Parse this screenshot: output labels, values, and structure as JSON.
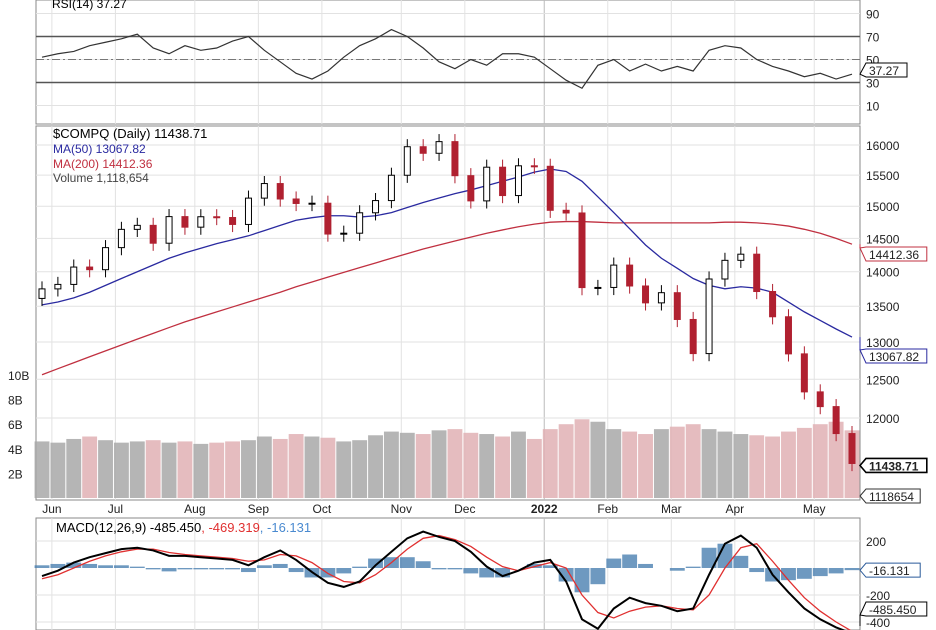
{
  "chart_data": {
    "type": "candlestick",
    "title": "$COMPQ (Daily) 11438.71",
    "symbol": "$COMPQ",
    "period": "Daily",
    "last_close": "11438.71",
    "price_scale": "log",
    "grid": true,
    "legend_placement": "top-left",
    "dates": [
      "2021-05-28",
      "2021-06-04",
      "2021-06-11",
      "2021-06-18",
      "2021-06-25",
      "2021-07-02",
      "2021-07-09",
      "2021-07-16",
      "2021-07-23",
      "2021-07-30",
      "2021-08-06",
      "2021-08-13",
      "2021-08-20",
      "2021-08-27",
      "2021-09-03",
      "2021-09-10",
      "2021-09-17",
      "2021-09-24",
      "2021-10-01",
      "2021-10-08",
      "2021-10-15",
      "2021-10-22",
      "2021-10-29",
      "2021-11-05",
      "2021-11-12",
      "2021-11-19",
      "2021-11-26",
      "2021-12-03",
      "2021-12-10",
      "2021-12-17",
      "2021-12-23",
      "2021-12-31",
      "2022-01-07",
      "2022-01-14",
      "2022-01-21",
      "2022-01-28",
      "2022-02-04",
      "2022-02-11",
      "2022-02-18",
      "2022-02-25",
      "2022-03-04",
      "2022-03-11",
      "2022-03-18",
      "2022-03-25",
      "2022-04-01",
      "2022-04-08",
      "2022-04-14",
      "2022-04-22",
      "2022-04-29",
      "2022-05-06",
      "2022-05-13",
      "2022-05-20"
    ],
    "close": [
      13749,
      13814,
      14069,
      14030,
      14360,
      14639,
      14701,
      14427,
      14837,
      14673,
      14835,
      14823,
      14715,
      15129,
      15363,
      15115,
      15044,
      15048,
      14567,
      14580,
      14897,
      15090,
      15498,
      15971,
      15861,
      16057,
      15491,
      15085,
      15630,
      15170,
      15653,
      15645,
      14936,
      14894,
      13768,
      13770,
      14098,
      13791,
      13548,
      13694,
      13313,
      12843,
      13893,
      14169,
      14261,
      13711,
      13351,
      12839,
      12335,
      12145,
      11805,
      11438.71
    ],
    "ma50": {
      "label": "MA(50)",
      "value": "13067.82",
      "color": "#2a2aa0",
      "values": [
        13520,
        13560,
        13620,
        13700,
        13800,
        13900,
        14000,
        14100,
        14200,
        14280,
        14350,
        14420,
        14480,
        14540,
        14620,
        14700,
        14780,
        14820,
        14850,
        14850,
        14830,
        14850,
        14900,
        14980,
        15060,
        15130,
        15200,
        15260,
        15330,
        15400,
        15470,
        15550,
        15600,
        15560,
        15400,
        15150,
        14900,
        14650,
        14400,
        14200,
        14050,
        13900,
        13800,
        13750,
        13780,
        13760,
        13700,
        13560,
        13420,
        13300,
        13180,
        13068
      ]
    },
    "ma200": {
      "label": "MA(200)",
      "value": "14412.36",
      "color": "#c03040",
      "values": [
        12560,
        12640,
        12720,
        12800,
        12880,
        12960,
        13040,
        13120,
        13200,
        13280,
        13350,
        13420,
        13490,
        13560,
        13630,
        13700,
        13780,
        13850,
        13920,
        13990,
        14060,
        14130,
        14200,
        14270,
        14340,
        14400,
        14460,
        14520,
        14580,
        14630,
        14680,
        14720,
        14750,
        14760,
        14760,
        14750,
        14740,
        14740,
        14740,
        14740,
        14740,
        14740,
        14740,
        14750,
        14750,
        14740,
        14720,
        14690,
        14640,
        14580,
        14500,
        14412
      ]
    },
    "volume": {
      "label": "Volume",
      "value": "1,118,654",
      "last_label": "1118654",
      "unit": "B",
      "values": [
        4.6,
        4.5,
        4.8,
        5.0,
        4.7,
        4.5,
        4.6,
        4.7,
        4.5,
        4.6,
        4.4,
        4.5,
        4.6,
        4.7,
        5.0,
        4.8,
        5.2,
        5.0,
        4.9,
        4.6,
        4.7,
        5.1,
        5.4,
        5.3,
        5.2,
        5.5,
        5.6,
        5.3,
        5.2,
        5.0,
        5.4,
        4.8,
        5.6,
        6.0,
        6.4,
        6.2,
        5.6,
        5.4,
        5.2,
        5.6,
        5.8,
        6.0,
        5.6,
        5.4,
        5.2,
        5.1,
        5.0,
        5.4,
        5.7,
        6.0,
        6.2,
        5.5
      ],
      "ticks": [
        "2B",
        "4B",
        "6B",
        "8B",
        "10B"
      ]
    },
    "price_ticks": [
      12000,
      12500,
      13000,
      13500,
      14000,
      14500,
      15000,
      15500,
      16000
    ],
    "rsi": {
      "label": "RSI(14)",
      "value": "37.27",
      "overbought": 70,
      "oversold": 30,
      "values": [
        52,
        55,
        57,
        62,
        65,
        68,
        72,
        60,
        55,
        62,
        58,
        60,
        66,
        70,
        58,
        48,
        38,
        33,
        40,
        52,
        62,
        68,
        76,
        70,
        60,
        48,
        42,
        50,
        45,
        55,
        55,
        52,
        42,
        32,
        25,
        45,
        50,
        40,
        46,
        40,
        44,
        40,
        58,
        62,
        60,
        50,
        44,
        40,
        35,
        38,
        33,
        37.27
      ],
      "ticks": [
        10,
        30,
        50,
        70,
        90
      ]
    },
    "macd": {
      "label": "MACD(12,26,9)",
      "macd_value": "-485.450",
      "signal_value": "-469.319",
      "hist_value": "-16.131",
      "macd": [
        -60,
        -20,
        40,
        80,
        110,
        140,
        150,
        130,
        90,
        90,
        80,
        70,
        60,
        20,
        80,
        130,
        60,
        -30,
        -110,
        -140,
        -100,
        20,
        120,
        220,
        270,
        230,
        200,
        120,
        10,
        -60,
        -20,
        40,
        60,
        -100,
        -380,
        -450,
        -300,
        -220,
        -260,
        -280,
        -320,
        -300,
        -50,
        180,
        240,
        150,
        -50,
        -180,
        -300,
        -380,
        -440,
        -485
      ],
      "signal": [
        -80,
        -50,
        0,
        50,
        90,
        120,
        140,
        140,
        115,
        100,
        90,
        80,
        70,
        50,
        60,
        100,
        90,
        40,
        -40,
        -100,
        -110,
        -50,
        40,
        140,
        220,
        240,
        210,
        160,
        80,
        10,
        -20,
        10,
        40,
        0,
        -200,
        -330,
        -370,
        -320,
        -290,
        -280,
        -300,
        -310,
        -200,
        0,
        150,
        180,
        50,
        -90,
        -220,
        -320,
        -400,
        -469
      ],
      "ticks": [
        200,
        -200,
        -400
      ],
      "colors": {
        "macd": "#000000",
        "signal": "#e03030",
        "hist": "#4a7fb0"
      }
    },
    "x_ticks": [
      {
        "label": "Jun",
        "date": "2021-06-01"
      },
      {
        "label": "Jul",
        "date": "2021-07-01"
      },
      {
        "label": "Aug",
        "date": "2021-08-01"
      },
      {
        "label": "Sep",
        "date": "2021-09-01"
      },
      {
        "label": "Oct",
        "date": "2021-10-01"
      },
      {
        "label": "Nov",
        "date": "2021-11-01"
      },
      {
        "label": "Dec",
        "date": "2021-12-01"
      },
      {
        "label": "2022",
        "date": "2022-01-01",
        "bold": true
      },
      {
        "label": "Feb",
        "date": "2022-02-01"
      },
      {
        "label": "Mar",
        "date": "2022-03-01"
      },
      {
        "label": "Apr",
        "date": "2022-04-01"
      },
      {
        "label": "May",
        "date": "2022-05-01"
      }
    ],
    "colors": {
      "up": "#000000",
      "down": "#b02030",
      "vol_up": "#a8a8a8",
      "vol_down": "#e0b0b4",
      "grid": "#e2e2e2"
    }
  },
  "legend": {
    "rsi": "RSI(14) 37.27",
    "price": "$COMPQ (Daily) 11438.71",
    "ma50": "MA(50) 13067.82",
    "ma200": "MA(200) 14412.36",
    "volume": "Volume 1,118,654",
    "macd_label": "MACD(12,26,9) -485.450",
    "macd_signal": ", -469.319",
    "macd_hist": ", -16.131"
  }
}
